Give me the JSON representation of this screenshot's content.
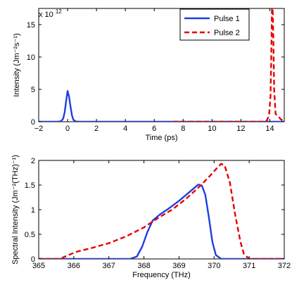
{
  "chart_data": [
    {
      "type": "line",
      "xlabel": "Time (ps)",
      "ylabel": "Intensity (Jm⁻²s⁻¹)",
      "multiplier_text": "x 10",
      "multiplier_exp": "12",
      "xlim": [
        -2,
        15
      ],
      "ylim": [
        0,
        17.5
      ],
      "x_ticks": [
        -2,
        0,
        2,
        4,
        6,
        8,
        10,
        12,
        14
      ],
      "x_tick_labels": [
        "−2",
        "0",
        "2",
        "4",
        "6",
        "8",
        "10",
        "12",
        "14"
      ],
      "y_ticks": [
        0,
        5,
        10,
        15
      ],
      "y_tick_labels": [
        "0",
        "5",
        "10",
        "15"
      ],
      "legend": {
        "position": "top-right",
        "entries": [
          "Pulse 1",
          "Pulse 2"
        ]
      },
      "series": [
        {
          "name": "Pulse 1",
          "color": "#1f3fe0",
          "style": "solid",
          "points": [
            [
              -2,
              0
            ],
            [
              -0.7,
              0
            ],
            [
              -0.45,
              0.08
            ],
            [
              -0.3,
              0.5
            ],
            [
              -0.2,
              1.5
            ],
            [
              -0.1,
              3.2
            ],
            [
              0,
              4.75
            ],
            [
              0.1,
              3.9
            ],
            [
              0.2,
              2.4
            ],
            [
              0.3,
              1.0
            ],
            [
              0.4,
              0.3
            ],
            [
              0.55,
              0.05
            ],
            [
              0.8,
              0
            ],
            [
              15,
              0
            ]
          ]
        },
        {
          "name": "Pulse 2",
          "color": "#e60000",
          "style": "dashed",
          "points": [
            [
              7.3,
              0
            ],
            [
              13.5,
              0
            ],
            [
              13.8,
              0.2
            ],
            [
              13.95,
              1.0
            ],
            [
              14.05,
              4.0
            ],
            [
              14.1,
              10.0
            ],
            [
              14.15,
              17.5
            ],
            [
              14.2,
              17.5
            ],
            [
              14.25,
              12.0
            ],
            [
              14.3,
              5.0
            ],
            [
              14.4,
              1.2
            ],
            [
              14.6,
              0.8
            ],
            [
              14.75,
              0.4
            ],
            [
              15,
              0
            ]
          ]
        }
      ]
    },
    {
      "type": "line",
      "xlabel": "Frequency (THz)",
      "ylabel": "Spectral Intensity (Jm⁻²(THz)⁻¹)",
      "xlim": [
        365,
        372
      ],
      "ylim": [
        0,
        2
      ],
      "x_ticks": [
        365,
        366,
        367,
        368,
        369,
        370,
        371,
        372
      ],
      "x_tick_labels": [
        "365",
        "366",
        "367",
        "368",
        "369",
        "370",
        "371",
        "372"
      ],
      "y_ticks": [
        0,
        0.5,
        1,
        1.5,
        2
      ],
      "y_tick_labels": [
        "0",
        "0.5",
        "1",
        "1.5",
        "2"
      ],
      "series": [
        {
          "name": "Pulse 1",
          "color": "#1f3fe0",
          "style": "solid",
          "points": [
            [
              365,
              0
            ],
            [
              367.6,
              0
            ],
            [
              367.8,
              0.05
            ],
            [
              367.95,
              0.25
            ],
            [
              368.1,
              0.55
            ],
            [
              368.25,
              0.78
            ],
            [
              368.45,
              0.9
            ],
            [
              368.7,
              1.02
            ],
            [
              369.0,
              1.18
            ],
            [
              369.3,
              1.36
            ],
            [
              369.55,
              1.51
            ],
            [
              369.65,
              1.49
            ],
            [
              369.75,
              1.3
            ],
            [
              369.85,
              0.85
            ],
            [
              369.95,
              0.35
            ],
            [
              370.05,
              0.08
            ],
            [
              370.2,
              0
            ],
            [
              372,
              0
            ]
          ]
        },
        {
          "name": "Pulse 2",
          "color": "#e60000",
          "style": "dashed",
          "points": [
            [
              365,
              0
            ],
            [
              365.6,
              0
            ],
            [
              365.85,
              0.08
            ],
            [
              366.1,
              0.15
            ],
            [
              366.5,
              0.22
            ],
            [
              367.0,
              0.32
            ],
            [
              367.5,
              0.46
            ],
            [
              368.0,
              0.64
            ],
            [
              368.4,
              0.83
            ],
            [
              368.8,
              1.0
            ],
            [
              369.2,
              1.22
            ],
            [
              369.6,
              1.48
            ],
            [
              369.9,
              1.7
            ],
            [
              370.1,
              1.86
            ],
            [
              370.2,
              1.93
            ],
            [
              370.3,
              1.9
            ],
            [
              370.45,
              1.55
            ],
            [
              370.6,
              0.9
            ],
            [
              370.75,
              0.35
            ],
            [
              370.85,
              0.1
            ],
            [
              371.0,
              0
            ],
            [
              372,
              0
            ]
          ]
        }
      ]
    }
  ]
}
